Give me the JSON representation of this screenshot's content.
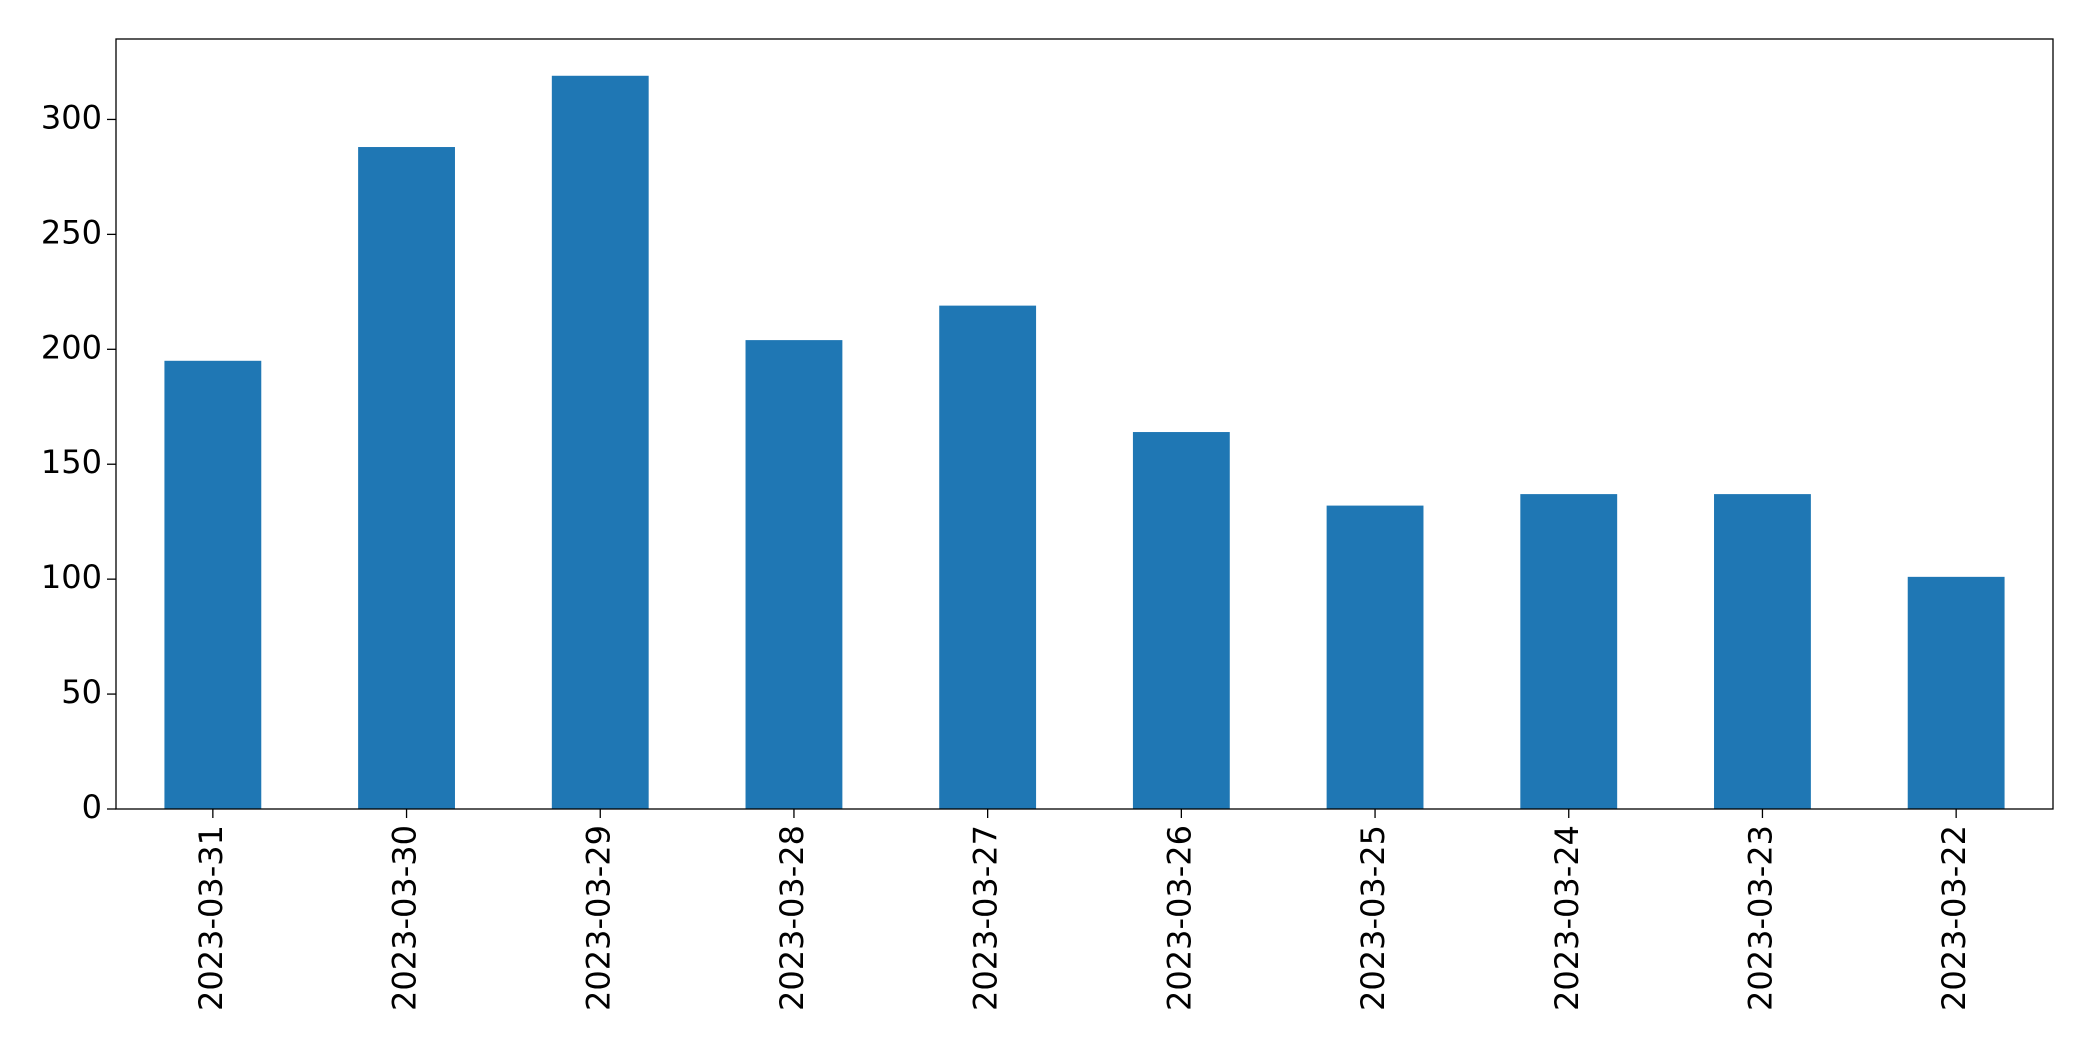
{
  "chart_data": {
    "type": "bar",
    "categories": [
      "2023-03-31",
      "2023-03-30",
      "2023-03-29",
      "2023-03-28",
      "2023-03-27",
      "2023-03-26",
      "2023-03-25",
      "2023-03-24",
      "2023-03-23",
      "2023-03-22"
    ],
    "values": [
      195,
      288,
      319,
      204,
      219,
      164,
      132,
      137,
      137,
      101
    ],
    "color": "#1f77b4",
    "ylim": [
      0,
      335
    ],
    "yticks": [
      0,
      50,
      100,
      150,
      200,
      250,
      300
    ],
    "grid": false
  }
}
